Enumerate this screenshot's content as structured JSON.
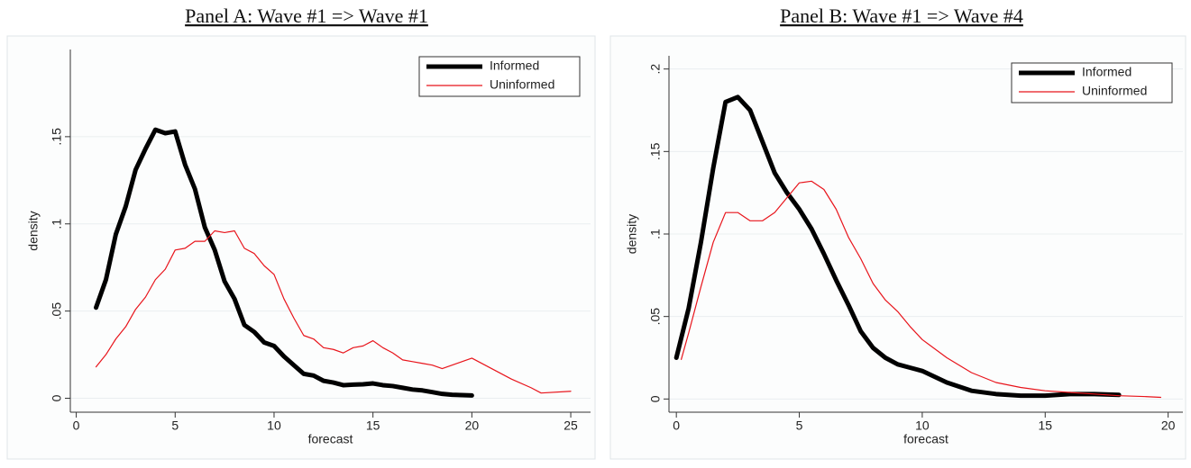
{
  "chart_data": [
    {
      "type": "line",
      "title": "Panel A: Wave #1 => Wave #1",
      "xlabel": "forecast",
      "ylabel": "density",
      "xlim": [
        -0.3,
        26
      ],
      "ylim": [
        -0.008,
        0.2
      ],
      "xticks": [
        0,
        5,
        10,
        15,
        20,
        25
      ],
      "yticks": [
        0,
        {
          "value": 0.05,
          "label": ".05"
        },
        {
          "value": 0.1,
          "label": ".1"
        },
        {
          "value": 0.15,
          "label": ".15"
        }
      ],
      "grid": true,
      "legend": "top-right",
      "series": [
        {
          "name": "Informed",
          "color": "#000000",
          "line_width": 5,
          "x": [
            1,
            1.5,
            2,
            2.5,
            3,
            3.5,
            4,
            4.5,
            5,
            5.5,
            6,
            6.5,
            7,
            7.5,
            8,
            8.5,
            9,
            9.5,
            10,
            10.5,
            11,
            11.5,
            12,
            12.5,
            13,
            13.5,
            14,
            14.5,
            15,
            15.5,
            16,
            16.5,
            17,
            17.5,
            18,
            18.5,
            19,
            19.5,
            20
          ],
          "values": [
            0.052,
            0.068,
            0.094,
            0.11,
            0.131,
            0.143,
            0.154,
            0.152,
            0.153,
            0.134,
            0.12,
            0.098,
            0.085,
            0.067,
            0.057,
            0.042,
            0.038,
            0.032,
            0.03,
            0.024,
            0.019,
            0.014,
            0.013,
            0.01,
            0.009,
            0.0075,
            0.0078,
            0.008,
            0.0085,
            0.0075,
            0.007,
            0.006,
            0.005,
            0.0045,
            0.0035,
            0.0025,
            0.002,
            0.0018,
            0.0016
          ]
        },
        {
          "name": "Uninformed",
          "color": "#e8141b",
          "line_width": 1.2,
          "x": [
            1,
            1.5,
            2,
            2.5,
            3,
            3.5,
            4,
            4.5,
            5,
            5.5,
            6,
            6.5,
            7,
            7.5,
            8,
            8.5,
            9,
            9.5,
            10,
            10.5,
            11,
            11.5,
            12,
            12.5,
            13,
            13.5,
            14,
            14.5,
            15,
            15.5,
            16,
            16.5,
            17,
            17.5,
            18,
            18.5,
            19,
            19.5,
            20,
            21,
            22,
            23,
            23.5,
            25
          ],
          "values": [
            0.018,
            0.025,
            0.034,
            0.041,
            0.051,
            0.058,
            0.068,
            0.074,
            0.085,
            0.086,
            0.09,
            0.09,
            0.096,
            0.095,
            0.096,
            0.086,
            0.083,
            0.076,
            0.071,
            0.057,
            0.046,
            0.036,
            0.034,
            0.029,
            0.028,
            0.026,
            0.029,
            0.03,
            0.033,
            0.029,
            0.026,
            0.022,
            0.021,
            0.02,
            0.019,
            0.017,
            0.019,
            0.021,
            0.023,
            0.017,
            0.011,
            0.006,
            0.003,
            0.004
          ]
        }
      ]
    },
    {
      "type": "line",
      "title": "Panel B: Wave #1 => Wave #4",
      "xlabel": "forecast",
      "ylabel": "density",
      "xlim": [
        -0.3,
        20.6
      ],
      "ylim": [
        -0.008,
        0.208
      ],
      "xticks": [
        0,
        5,
        10,
        15,
        20
      ],
      "yticks": [
        0,
        {
          "value": 0.05,
          "label": ".05"
        },
        {
          "value": 0.1,
          "label": ".1"
        },
        {
          "value": 0.15,
          "label": ".15"
        },
        {
          "value": 0.2,
          "label": ".2"
        }
      ],
      "grid": true,
      "legend": "top-right",
      "series": [
        {
          "name": "Informed",
          "color": "#000000",
          "line_width": 5,
          "x": [
            0,
            0.5,
            1,
            1.5,
            2,
            2.5,
            3,
            3.5,
            4,
            4.5,
            5,
            5.5,
            6,
            6.5,
            7,
            7.5,
            8,
            8.5,
            9,
            9.5,
            10,
            11,
            12,
            13,
            14,
            15,
            16,
            17,
            18
          ],
          "values": [
            0.025,
            0.055,
            0.095,
            0.14,
            0.18,
            0.183,
            0.175,
            0.156,
            0.137,
            0.125,
            0.115,
            0.103,
            0.088,
            0.072,
            0.057,
            0.041,
            0.031,
            0.025,
            0.021,
            0.019,
            0.017,
            0.01,
            0.005,
            0.003,
            0.002,
            0.002,
            0.003,
            0.003,
            0.0025
          ]
        },
        {
          "name": "Uninformed",
          "color": "#e8141b",
          "line_width": 1.2,
          "x": [
            0.2,
            0.5,
            1,
            1.5,
            2,
            2.5,
            3,
            3.5,
            4,
            4.5,
            5,
            5.5,
            6,
            6.5,
            7,
            7.5,
            8,
            8.5,
            9,
            9.5,
            10,
            11,
            12,
            13,
            14,
            15,
            16,
            17,
            18,
            19,
            19.7
          ],
          "values": [
            0.024,
            0.04,
            0.068,
            0.095,
            0.113,
            0.113,
            0.108,
            0.108,
            0.113,
            0.122,
            0.131,
            0.132,
            0.127,
            0.115,
            0.098,
            0.085,
            0.07,
            0.06,
            0.053,
            0.044,
            0.036,
            0.025,
            0.016,
            0.01,
            0.007,
            0.005,
            0.004,
            0.003,
            0.002,
            0.0015,
            0.001
          ]
        }
      ]
    }
  ]
}
